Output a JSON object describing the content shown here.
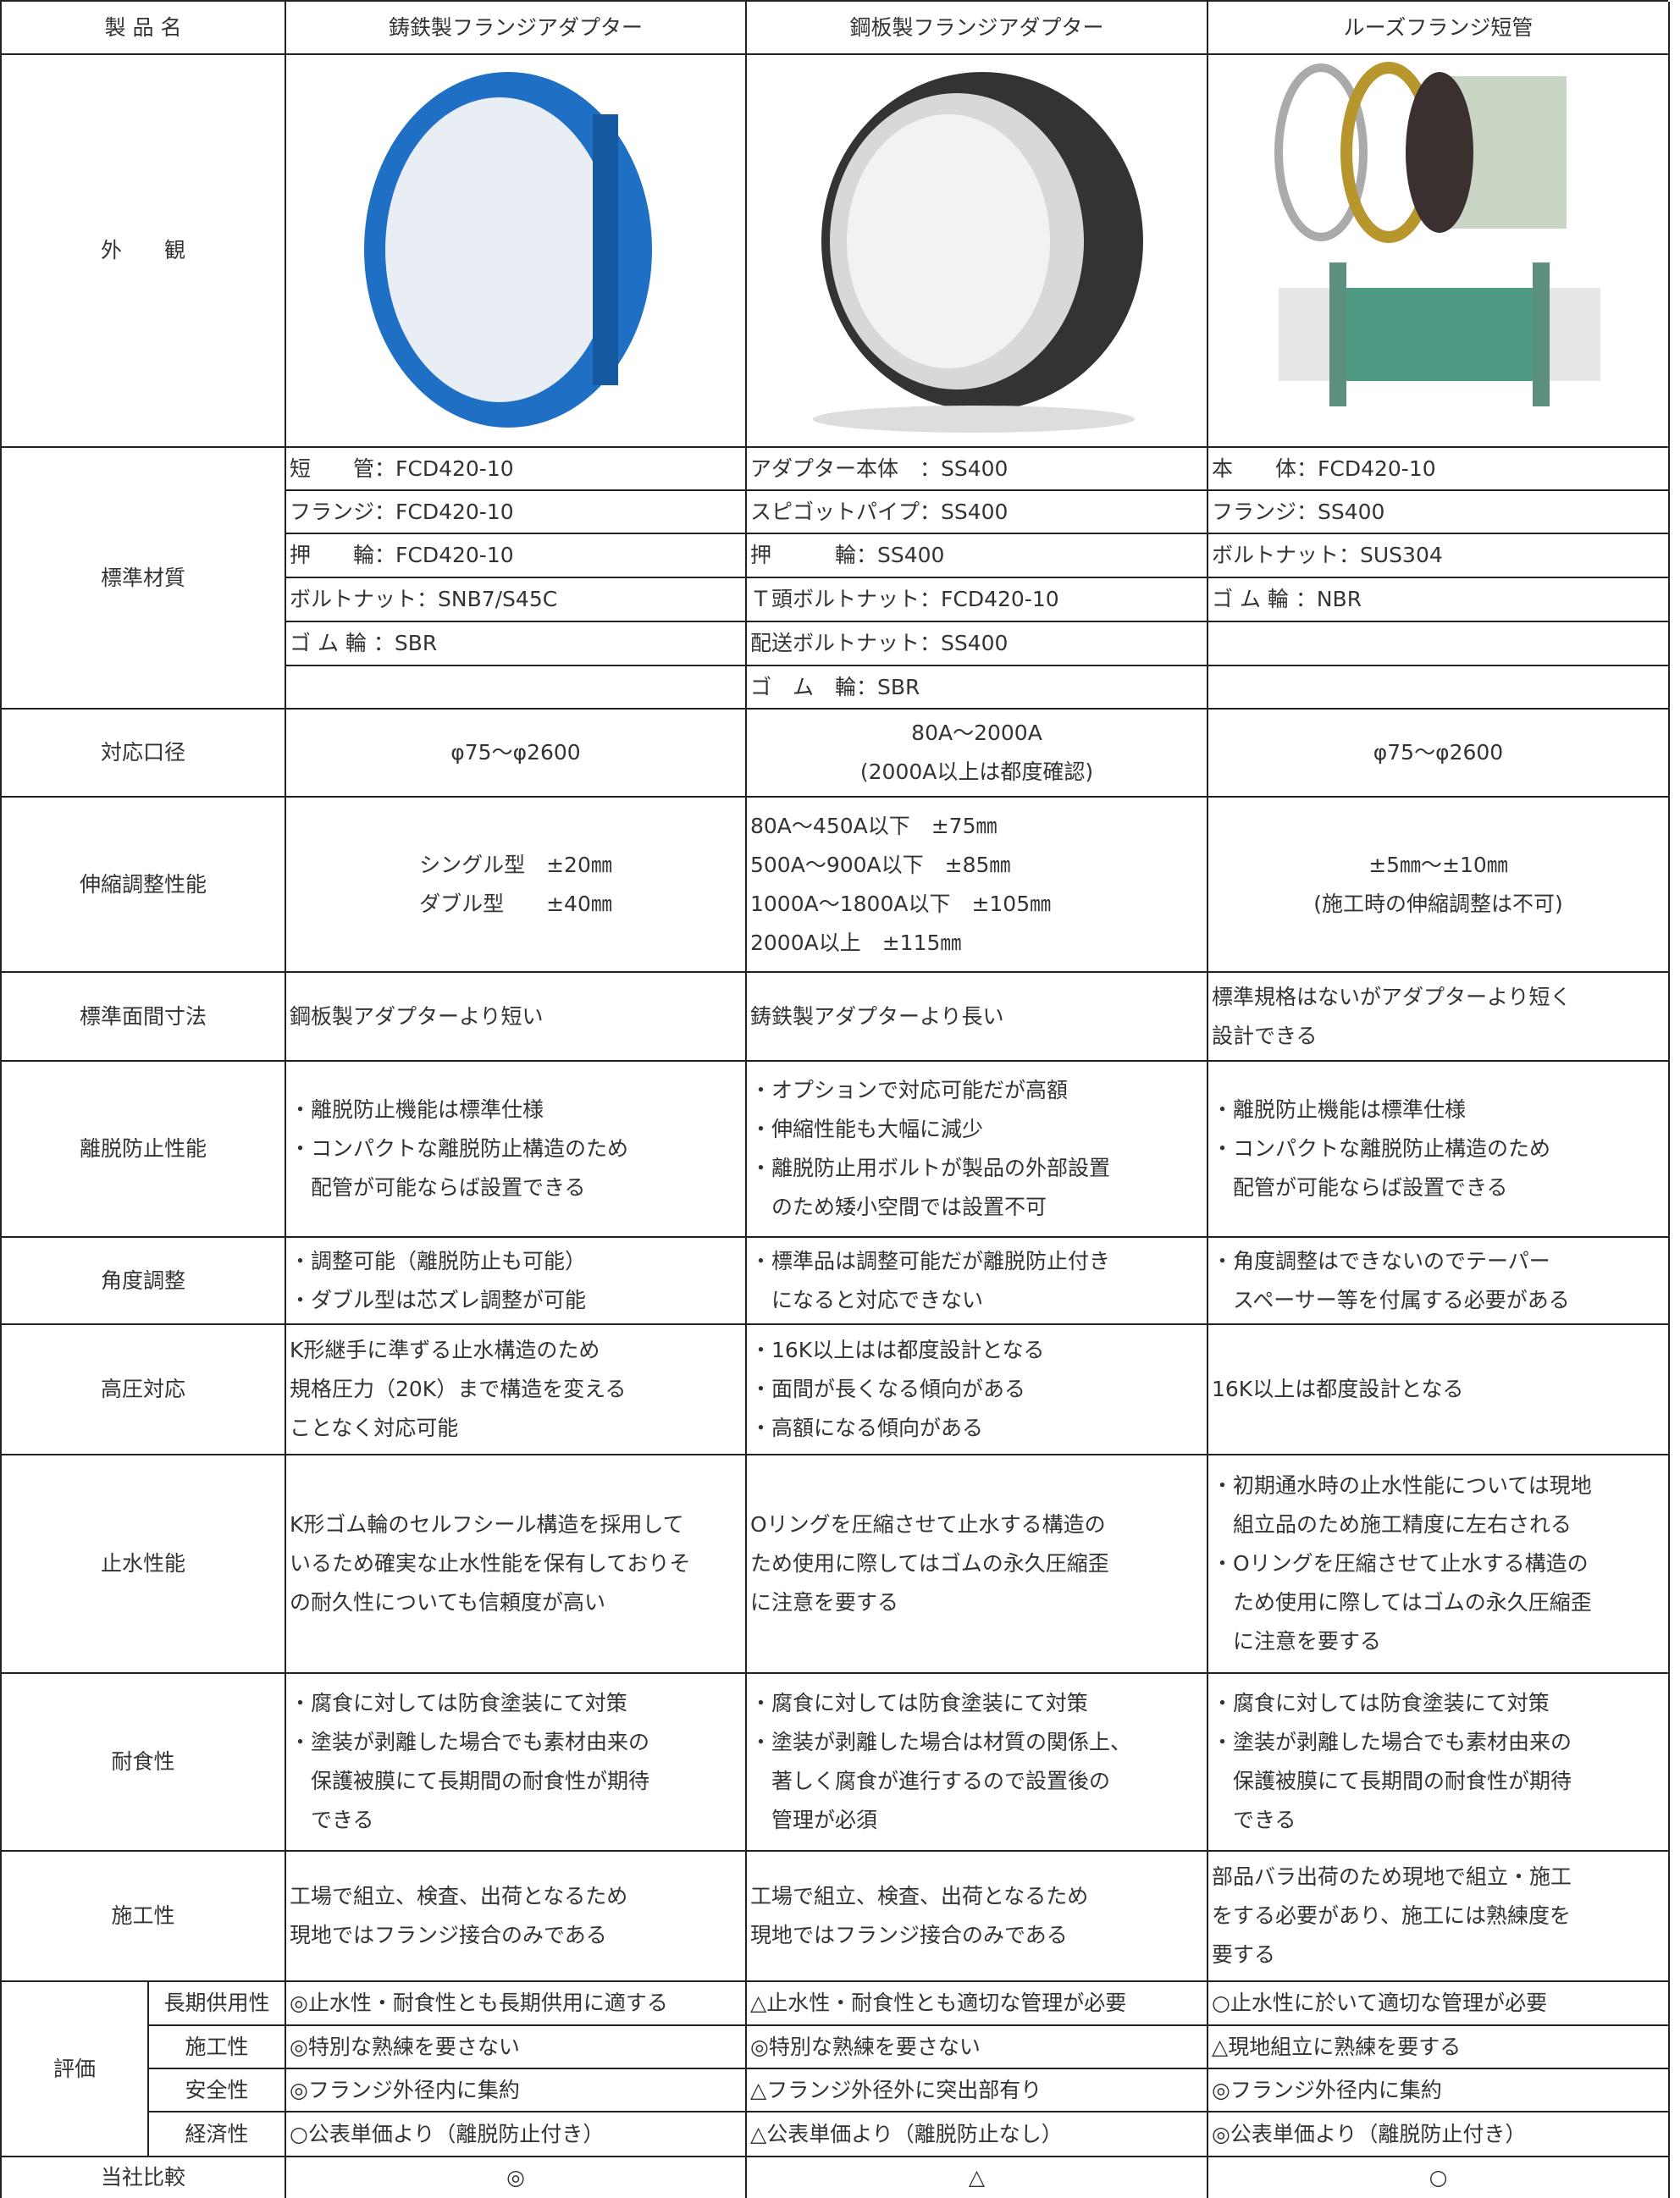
{
  "header": [
    "製 品 名",
    "鋳鉄製フランジアダプター",
    "鋼板製フランジアダプター",
    "ルーズフランジ短管"
  ],
  "appearance": {
    "label": "外　　観"
  },
  "materials": {
    "label": "標準材質",
    "cells": [
      [
        "短　　管：FCD420-10",
        "フランジ：FCD420-10",
        "押　　輪：FCD420-10",
        "ボルトナット：SNB7/S45C",
        "ゴ ム 輪 ：SBR"
      ],
      [
        "アダプター本体　：SS400",
        "スピゴットパイプ：SS400",
        "押　　　輪：SS400",
        "Ｔ頭ボルトナット：FCD420-10",
        "配送ボルトナット：SS400",
        "ゴ　ム　輪：SBR"
      ],
      [
        "本　　体：FCD420-10",
        "フランジ：SS400",
        "ボルトナット：SUS304",
        "ゴ ム 輪 ：NBR"
      ]
    ]
  },
  "rows": [
    {
      "label": "対応口径",
      "cells": [
        [
          "φ75～φ2600"
        ],
        [
          "80A～2000A",
          "(2000A以上は都度確認)"
        ],
        [
          "φ75～φ2600"
        ]
      ]
    },
    {
      "label": "伸縮調整性能",
      "cells": [
        [
          "シングル型　±20㎜",
          "ダブル型　　±40㎜"
        ],
        [
          "80A～450A以下　±75㎜",
          "500A～900A以下　±85㎜",
          "1000A～1800A以下　±105㎜",
          "2000A以上　±115㎜"
        ],
        [
          "±5㎜～±10㎜",
          "(施工時の伸縮調整は不可)"
        ]
      ]
    },
    {
      "label": "標準面間寸法",
      "cells": [
        [
          "鋼板製アダプターより短い"
        ],
        [
          "鋳鉄製アダプターより長い"
        ],
        [
          "標準規格はないがアダプターより短く",
          "設計できる"
        ]
      ]
    },
    {
      "label": "離脱防止性能",
      "cells": [
        [
          "・離脱防止機能は標準仕様",
          "・コンパクトな離脱防止構造のため",
          "配管が可能ならば設置できる"
        ],
        [
          "・オプションで対応可能だが高額",
          "・伸縮性能も大幅に減少",
          "・離脱防止用ボルトが製品の外部設置",
          "のため矮小空間では設置不可"
        ],
        [
          "・離脱防止機能は標準仕様",
          "・コンパクトな離脱防止構造のため",
          "配管が可能ならば設置できる"
        ]
      ]
    },
    {
      "label": "角度調整",
      "cells": [
        [
          "・調整可能（離脱防止も可能）",
          "・ダブル型は芯ズレ調整が可能"
        ],
        [
          "・標準品は調整可能だが離脱防止付き",
          "になると対応できない"
        ],
        [
          "・角度調整はできないのでテーパー",
          "スペーサー等を付属する必要がある"
        ]
      ]
    },
    {
      "label": "高圧対応",
      "cells": [
        [
          "K形継手に準ずる止水構造のため",
          "規格圧力（20K）まで構造を変える",
          "ことなく対応可能"
        ],
        [
          "・16K以上はは都度設計となる",
          "・面間が長くなる傾向がある",
          "・高額になる傾向がある"
        ],
        [
          "16K以上は都度設計となる"
        ]
      ]
    },
    {
      "label": "止水性能",
      "cells": [
        [
          "K形ゴム輪のセルフシール構造を採用して",
          "いるため確実な止水性能を保有しておりそ",
          "の耐久性についても信頼度が高い"
        ],
        [
          "Oリングを圧縮させて止水する構造の",
          "ため使用に際してはゴムの永久圧縮歪",
          "に注意を要する"
        ],
        [
          "・初期通水時の止水性能については現地",
          "組立品のため施工精度に左右される",
          "・Oリングを圧縮させて止水する構造の",
          "ため使用に際してはゴムの永久圧縮歪",
          "に注意を要する"
        ]
      ]
    },
    {
      "label": "耐食性",
      "cells": [
        [
          "・腐食に対しては防食塗装にて対策",
          "・塗装が剥離した場合でも素材由来の",
          "保護被膜にて長期間の耐食性が期待",
          "できる"
        ],
        [
          "・腐食に対しては防食塗装にて対策",
          "・塗装が剥離した場合は材質の関係上、",
          "著しく腐食が進行するので設置後の",
          "管理が必須"
        ],
        [
          "・腐食に対しては防食塗装にて対策",
          "・塗装が剥離した場合でも素材由来の",
          "保護被膜にて長期間の耐食性が期待",
          "できる"
        ]
      ]
    },
    {
      "label": "施工性",
      "cells": [
        [
          "工場で組立、検査、出荷となるため",
          "現地ではフランジ接合のみである"
        ],
        [
          "工場で組立、検査、出荷となるため",
          "現地ではフランジ接合のみである"
        ],
        [
          "部品バラ出荷のため現地で組立・施工",
          "をする必要があり、施工には熟練度を",
          "要する"
        ]
      ]
    }
  ],
  "evaluation": {
    "label": "評価",
    "items": [
      {
        "label": "長期供用性",
        "cells": [
          "◎止水性・耐食性とも長期供用に適する",
          "△止水性・耐食性とも適切な管理が必要",
          "○止水性に於いて適切な管理が必要"
        ]
      },
      {
        "label": "施工性",
        "cells": [
          "◎特別な熟練を要さない",
          "◎特別な熟練を要さない",
          "△現地組立に熟練を要する"
        ]
      },
      {
        "label": "安全性",
        "cells": [
          "◎フランジ外径内に集約",
          "△フランジ外径外に突出部有り",
          "◎フランジ外径内に集約"
        ]
      },
      {
        "label": "経済性",
        "cells": [
          "○公表単価より（離脱防止付き）",
          "△公表単価より（離脱防止なし）",
          "◎公表単価より（離脱防止付き）"
        ]
      }
    ]
  },
  "comparison": {
    "label": "当社比較",
    "cells": [
      "◎",
      "△",
      "○"
    ]
  }
}
